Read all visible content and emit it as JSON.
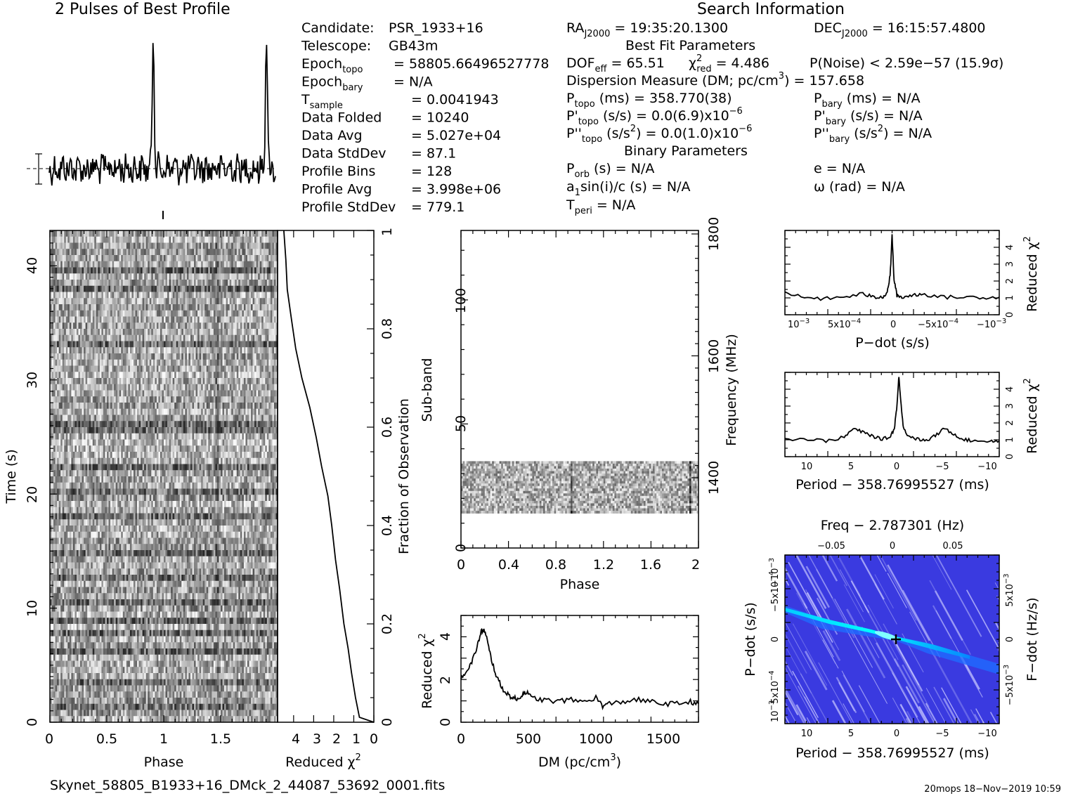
{
  "title_profile": "2 Pulses of Best Profile",
  "title_search": "Search Information",
  "candidate": {
    "rows": [
      {
        "label": "Candidate:",
        "value": "PSR_1933+16"
      },
      {
        "label": "Telescope:",
        "value": "GB43m"
      },
      {
        "label": "Epoch",
        "sub": "topo",
        "value": "= 58805.66496527778"
      },
      {
        "label": "Epoch",
        "sub": "bary",
        "value": "= N/A"
      },
      {
        "label": "T",
        "sub": "sample",
        "value": "=   0.0041943"
      },
      {
        "label": "Data Folded",
        "value": "=   10240"
      },
      {
        "label": "Data Avg",
        "value": "=   5.027e+04"
      },
      {
        "label": "Data StdDev",
        "value": "=   87.1"
      },
      {
        "label": "Profile Bins",
        "value": "=   128"
      },
      {
        "label": "Profile Avg",
        "value": "=   3.998e+06"
      },
      {
        "label": "Profile StdDev",
        "value": "=   779.1"
      }
    ]
  },
  "search": {
    "ra": "RA",
    "ra_sub": "J2000",
    "ra_val": "= 19:35:20.1300",
    "dec": "DEC",
    "dec_sub": "J2000",
    "dec_val": "= 16:15:57.4800",
    "best_fit_title": "Best Fit Parameters",
    "dof": "DOF",
    "dof_sub": "eff",
    "dof_val": "= 65.51",
    "chi": "χ",
    "chi_sup": "2",
    "chi_sub": "red",
    "chi_val": "= 4.486",
    "pnoise": "P(Noise) < 2.59e−57   (15.9σ)",
    "dm_line_a": "Dispersion Measure (DM; pc/cm",
    "dm_line_sup": "3",
    "dm_line_b": ") = 157.658",
    "ptopo_label": "P",
    "ptopo_sub": "topo",
    "ptopo_val": "(ms) =   358.770(38)",
    "pbary_label": "P",
    "pbary_sub": "bary",
    "pbary_val": "(ms) = N/A",
    "pdtopo_label": "P'",
    "pdtopo_sub": "topo",
    "pdtopo_val": "(s/s) = 0.0(6.9)x10",
    "pdtopo_exp": "−6",
    "pdbary_label": "P'",
    "pdbary_sub": "bary",
    "pdbary_val": "(s/s) = N/A",
    "pddtopo_label": "P''",
    "pddtopo_sub": "topo",
    "pddtopo_val": "(s/s",
    "pddtopo_sup": "2",
    "pddtopo_val2": ") = 0.0(1.0)x10",
    "pddtopo_exp": "−6",
    "pddbary_label": "P''",
    "pddbary_sub": "bary",
    "pddbary_val": "(s/s",
    "pddbary_sup": "2",
    "pddbary_val2": ") = N/A",
    "binary_title": "Binary Parameters",
    "porb_label": "P",
    "porb_sub": "orb",
    "porb_val": "(s) = N/A",
    "e_val": "e = N/A",
    "a1_label": "a",
    "a1_sub": "1",
    "a1_val": "sin(i)/c (s) = N/A",
    "omega_val": "ω (rad) = N/A",
    "tperi_label": "T",
    "tperi_sub": "peri",
    "tperi_val": "= N/A"
  },
  "footer": {
    "filename": "Skynet_58805_B1933+16_DMck_2_44087_53692_0001.fits",
    "stamp": "20mops 18−Nov−2019 10:59"
  },
  "colors": {
    "ppdot_bg": "#3a3ae0",
    "ppdot_streak": "#00d8ff",
    "ppdot_light": "#c8c8ff"
  },
  "chart_data": [
    {
      "id": "profile",
      "type": "line",
      "title": "2 Pulses of Best Profile",
      "x_range": [
        0,
        2
      ],
      "peaks_at_phase": [
        0.92,
        1.92
      ]
    },
    {
      "id": "time_phase",
      "type": "heatmap",
      "xlabel": "Phase",
      "ylabel": "Time (s)",
      "x_ticks": [
        "0",
        "0.5",
        "1",
        "1.5"
      ],
      "y_ticks": [
        "0",
        "10",
        "20",
        "30",
        "40"
      ],
      "xlim": [
        0,
        2
      ],
      "ylim": [
        0,
        43
      ],
      "colormap": "grayscale"
    },
    {
      "id": "reduced_chi2_time",
      "type": "line",
      "xlabel": "Reduced χ",
      "xlabel_sup": "2",
      "ylabel": "Fraction of Observation",
      "x_ticks": [
        "4",
        "3",
        "2",
        "1",
        "0"
      ],
      "y_ticks": [
        "0.2",
        "0.4",
        "0.6",
        "0.8",
        "1"
      ],
      "y_ticks_zero": "0",
      "xlim": [
        4.8,
        0
      ],
      "ylim": [
        0,
        1
      ],
      "x": [
        0.7,
        0.9,
        1.1,
        1.3,
        1.5,
        1.7,
        1.9,
        2.1,
        2.3,
        2.6,
        2.9,
        3.2,
        3.6,
        3.9,
        4.1,
        4.3,
        4.4,
        4.5
      ],
      "y": [
        0.01,
        0.05,
        0.1,
        0.15,
        0.2,
        0.27,
        0.33,
        0.4,
        0.46,
        0.52,
        0.58,
        0.64,
        0.7,
        0.76,
        0.82,
        0.88,
        0.94,
        1.0
      ]
    },
    {
      "id": "subband_phase",
      "type": "heatmap",
      "xlabel": "Phase",
      "ylabel": "Sub-band",
      "y2label": "Frequency (MHz)",
      "x_ticks": [
        "0",
        "0.4",
        "0.8",
        "1.2",
        "1.6",
        "2"
      ],
      "y_ticks": [
        "0",
        "50",
        "100"
      ],
      "y2_ticks": [
        "1400",
        "1600",
        "1800"
      ],
      "xlim": [
        0,
        2
      ],
      "ylim": [
        0,
        128
      ],
      "filled_band": [
        14,
        35
      ],
      "colormap": "grayscale"
    },
    {
      "id": "dm_curve",
      "type": "line",
      "xlabel": "DM (pc/cm",
      "xlabel_sup": "3",
      "xlabel_end": ")",
      "ylabel": "Reduced χ",
      "ylabel_sup": "2",
      "x_ticks": [
        "0",
        "500",
        "1000",
        "1500"
      ],
      "y_ticks": [
        "0",
        "2",
        "4"
      ],
      "xlim": [
        0,
        1760
      ],
      "ylim": [
        0,
        5.2
      ],
      "x": [
        0,
        40,
        80,
        120,
        150,
        170,
        190,
        220,
        260,
        300,
        340,
        380,
        420,
        460,
        480,
        520,
        600,
        700,
        800,
        900,
        1000,
        1050,
        1100,
        1200,
        1300,
        1400,
        1500,
        1600,
        1700,
        1760
      ],
      "y": [
        2.2,
        2.5,
        2.9,
        3.7,
        4.4,
        4.5,
        4.1,
        3.2,
        2.3,
        1.7,
        1.4,
        1.2,
        1.1,
        1.4,
        1.5,
        1.2,
        1.1,
        1.0,
        1.1,
        1.0,
        1.2,
        0.8,
        0.9,
        1.0,
        1.1,
        1.0,
        0.9,
        0.9,
        1.0,
        0.9
      ]
    },
    {
      "id": "pdot_curve",
      "type": "line",
      "xlabel": "P−dot (s/s)",
      "ylabel": "Reduced χ",
      "ylabel_sup": "2",
      "x_ticks": [
        "10",
        "5x10",
        "0",
        "−5x10",
        "−10"
      ],
      "x_tick_exps": [
        "−3",
        "−4",
        "",
        "−4",
        "−3"
      ],
      "y_ticks": [
        "0",
        "1",
        "2",
        "3",
        "4"
      ],
      "xlim": [
        0.0011,
        -0.0011
      ],
      "ylim": [
        0,
        4.8
      ],
      "x": [
        0.0011,
        0.0009,
        0.0007,
        0.0005,
        0.0003,
        0.0002,
        0.0001,
        5e-05,
        2e-05,
        0.0,
        -2e-05,
        -5e-05,
        -0.0001,
        -0.0002,
        -0.0003,
        -0.0005,
        -0.0007,
        -0.0009,
        -0.0011
      ],
      "y": [
        1.2,
        1.0,
        0.9,
        1.0,
        1.2,
        1.0,
        1.0,
        1.3,
        2.2,
        4.5,
        2.0,
        1.1,
        1.0,
        1.1,
        1.2,
        1.0,
        1.0,
        1.0,
        1.0
      ]
    },
    {
      "id": "period_curve",
      "type": "line",
      "xlabel": "Period − 358.76995527 (ms)",
      "ylabel": "Reduced χ",
      "ylabel_sup": "2",
      "x_ticks": [
        "10",
        "5",
        "0",
        "−5",
        "−10"
      ],
      "y_ticks": [
        "0",
        "1",
        "2",
        "3",
        "4"
      ],
      "xlim": [
        12.5,
        -11
      ],
      "ylim": [
        0,
        4.8
      ],
      "x": [
        12.5,
        10,
        8,
        6,
        5,
        4,
        3,
        2,
        1,
        0.5,
        0.2,
        0,
        -0.2,
        -0.5,
        -1,
        -2,
        -3,
        -4,
        -5,
        -6,
        -7,
        -8,
        -10,
        -11
      ],
      "y": [
        1.0,
        1.0,
        0.9,
        1.1,
        1.6,
        1.4,
        1.2,
        1.0,
        1.1,
        1.6,
        3.0,
        4.6,
        3.2,
        1.6,
        1.2,
        1.0,
        0.9,
        1.2,
        1.6,
        1.3,
        1.0,
        0.9,
        0.9,
        0.9
      ]
    },
    {
      "id": "p_pdot_plane",
      "type": "heatmap",
      "title": "Freq − 2.787301 (Hz)",
      "xlabel": "Period − 358.76995527 (ms)",
      "ylabel": "P−dot (s/s)",
      "y2label": "F−dot (Hz/s)",
      "x_ticks": [
        "10",
        "5",
        "0",
        "−5",
        "−10"
      ],
      "x2_ticks": [
        "−0.05",
        "0",
        "0.05"
      ],
      "y_ticks": [
        "10",
        "5x10",
        "0",
        "−5x10",
        "−10"
      ],
      "y_tick_exps": [
        "−3",
        "−4",
        "",
        "−4",
        "−3"
      ],
      "y2_ticks": [
        "−5x10",
        "0",
        "5x10"
      ],
      "y2_tick_exps": [
        "−3",
        "",
        "−3"
      ],
      "best_fit": [
        0,
        0
      ]
    }
  ]
}
